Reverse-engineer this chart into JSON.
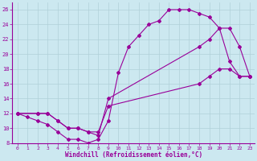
{
  "xlabel": "Windchill (Refroidissement éolien,°C)",
  "bg_color": "#cce8f0",
  "line_color": "#990099",
  "grid_color": "#b0d0d8",
  "xlim": [
    -0.5,
    23.5
  ],
  "ylim": [
    8,
    27
  ],
  "yticks": [
    8,
    10,
    12,
    14,
    16,
    18,
    20,
    22,
    24,
    26
  ],
  "xticks": [
    0,
    1,
    2,
    3,
    4,
    5,
    6,
    7,
    8,
    9,
    10,
    11,
    12,
    13,
    14,
    15,
    16,
    17,
    18,
    19,
    20,
    21,
    22,
    23
  ],
  "line1_x": [
    0,
    1,
    2,
    3,
    4,
    5,
    6,
    7,
    8,
    9,
    10,
    11,
    12,
    13,
    14,
    15,
    16,
    17,
    18,
    19,
    20,
    21,
    22,
    23
  ],
  "line1_y": [
    12,
    11.5,
    11,
    10.5,
    9.5,
    8.5,
    8.5,
    8,
    8.5,
    11,
    17.5,
    21,
    22.5,
    24,
    24.5,
    26,
    26,
    26,
    25.5,
    25,
    23.5,
    19,
    17,
    17
  ],
  "line2_x": [
    0,
    2,
    3,
    4,
    5,
    6,
    7,
    8,
    9,
    18,
    19,
    20,
    21,
    22,
    23
  ],
  "line2_y": [
    12,
    12,
    12,
    11,
    10,
    10,
    9.5,
    9,
    14,
    21,
    22,
    23.5,
    23.5,
    21,
    17
  ],
  "line3_x": [
    0,
    2,
    3,
    4,
    5,
    6,
    7,
    8,
    9,
    18,
    19,
    20,
    21,
    22,
    23
  ],
  "line3_y": [
    12,
    12,
    12,
    11,
    10,
    10,
    9.5,
    9.5,
    13,
    16,
    17,
    18,
    18,
    17,
    17
  ]
}
